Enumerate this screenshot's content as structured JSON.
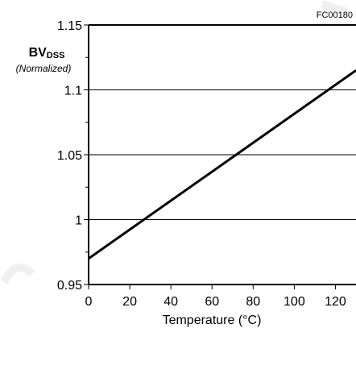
{
  "figure_code": "FC00180",
  "chart_data": {
    "type": "line",
    "title": "",
    "ylabel_main": "BV",
    "ylabel_sub": "DSS",
    "ylabel_note": "(Normalized)",
    "xlabel": "Temperature (°C)",
    "xlim": [
      0,
      130
    ],
    "ylim": [
      0.95,
      1.15
    ],
    "x_ticks": [
      0,
      20,
      40,
      60,
      80,
      100,
      120
    ],
    "y_ticks": [
      0.95,
      1.0,
      1.05,
      1.1,
      1.15
    ],
    "y_tick_labels": [
      "0.95",
      "1",
      "1.05",
      "1.1",
      "1.15"
    ],
    "grid": "horizontal",
    "series": [
      {
        "x": [
          0,
          130
        ],
        "y": [
          0.97,
          1.115
        ],
        "color": "#000000"
      }
    ]
  }
}
